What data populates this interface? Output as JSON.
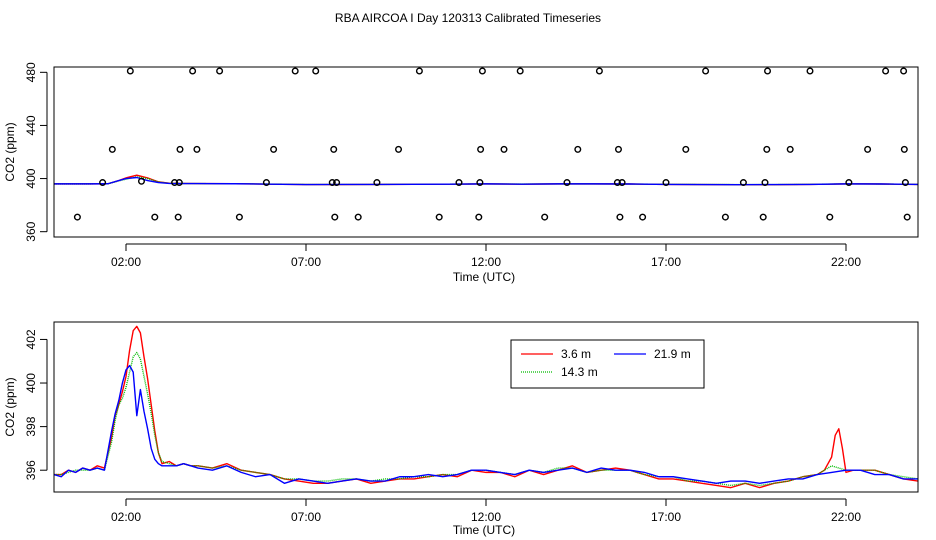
{
  "title": "RBA AIRCOA I  Day 120313  Calibrated Timeseries",
  "colors": {
    "s1": "#ff0000",
    "s2": "#00bb00",
    "s3": "#0000ff"
  },
  "chart_data": [
    {
      "type": "scatter",
      "xlabel": "Time (UTC)",
      "ylabel": "CO2 (ppm)",
      "xlim": [
        0.0,
        24.0
      ],
      "ylim": [
        356,
        484
      ],
      "xticks": [
        2,
        7,
        12,
        17,
        22
      ],
      "xtick_labels": [
        "02:00",
        "07:00",
        "12:00",
        "17:00",
        "22:00"
      ],
      "yticks": [
        360,
        400,
        440,
        480
      ],
      "ytick_labels": [
        "360",
        "400",
        "440",
        "480"
      ],
      "point_series": {
        "x": [
          0.65,
          1.35,
          1.62,
          2.12,
          2.43,
          2.8,
          3.35,
          3.45,
          3.48,
          3.5,
          3.85,
          3.97,
          4.6,
          5.15,
          5.9,
          6.1,
          6.7,
          7.27,
          7.73,
          7.77,
          7.8,
          7.85,
          8.45,
          8.97,
          9.57,
          10.15,
          10.7,
          11.25,
          11.8,
          11.83,
          11.85,
          11.9,
          12.5,
          12.95,
          13.63,
          14.25,
          14.55,
          15.15,
          15.65,
          15.68,
          15.72,
          15.78,
          16.35,
          17.0,
          17.55,
          18.1,
          18.65,
          19.15,
          19.7,
          19.75,
          19.8,
          19.82,
          20.45,
          21.0,
          21.55,
          22.08,
          22.6,
          23.1,
          23.6,
          23.62,
          23.65,
          23.7
        ],
        "y": [
          371,
          397,
          422,
          481,
          398,
          371,
          397,
          371,
          397,
          422,
          481,
          422,
          481,
          371,
          397,
          422,
          481,
          481,
          397,
          422,
          371,
          397,
          371,
          397,
          422,
          481,
          371,
          397,
          371,
          397,
          422,
          481,
          422,
          481,
          371,
          397,
          422,
          481,
          397,
          422,
          371,
          397,
          371,
          397,
          422,
          481,
          371,
          397,
          371,
          397,
          422,
          481,
          422,
          481,
          371,
          397,
          422,
          481,
          481,
          422,
          397,
          371
        ]
      },
      "series": [
        {
          "x": [
            0.0,
            0.5,
            1.0,
            1.5,
            1.8,
            2.0,
            2.3,
            2.6,
            2.9,
            3.2,
            3.5,
            4.0,
            5.0,
            6.0,
            7.0,
            8.0,
            9.0,
            10.0,
            11.0,
            12.0,
            13.0,
            14.0,
            15.0,
            16.0,
            17.0,
            18.0,
            19.0,
            20.0,
            21.0,
            21.5,
            22.0,
            22.5,
            23.0,
            23.5,
            24.0
          ],
          "y": [
            396,
            396,
            396,
            396.1,
            398.5,
            400.5,
            402.5,
            400.5,
            397.5,
            396.5,
            396.3,
            396.2,
            396.1,
            395.8,
            395.5,
            395.5,
            395.6,
            395.7,
            395.8,
            396.0,
            395.8,
            396.0,
            396.0,
            395.9,
            395.6,
            395.5,
            395.4,
            395.4,
            395.6,
            395.8,
            396.0,
            396.0,
            395.9,
            395.7,
            395.6
          ]
        },
        {
          "x": [
            0.0,
            0.5,
            1.0,
            1.5,
            1.8,
            2.0,
            2.3,
            2.6,
            2.9,
            3.2,
            3.5,
            4.0,
            5.0,
            6.0,
            7.0,
            8.0,
            9.0,
            10.0,
            11.0,
            12.0,
            13.0,
            14.0,
            15.0,
            16.0,
            17.0,
            18.0,
            19.0,
            20.0,
            21.0,
            22.0,
            23.0,
            24.0
          ],
          "y": [
            396,
            396,
            396,
            396.1,
            398.3,
            399.5,
            401.3,
            400,
            397.5,
            396.4,
            396.3,
            396.2,
            396.1,
            395.9,
            395.6,
            395.6,
            395.6,
            395.7,
            395.8,
            396.0,
            395.9,
            396.0,
            396.0,
            395.9,
            395.7,
            395.6,
            395.5,
            395.5,
            395.7,
            396.0,
            395.9,
            395.6
          ]
        },
        {
          "x": [
            0.0,
            0.5,
            1.0,
            1.5,
            1.8,
            2.0,
            2.3,
            2.6,
            2.9,
            3.2,
            3.5,
            4.0,
            5.0,
            6.0,
            7.0,
            8.0,
            9.0,
            10.0,
            11.0,
            12.0,
            13.0,
            14.0,
            15.0,
            16.0,
            17.0,
            18.0,
            19.0,
            20.0,
            21.0,
            22.0,
            23.0,
            24.0
          ],
          "y": [
            396,
            396,
            396,
            396.1,
            398.5,
            400,
            400.8,
            398.5,
            397,
            396.3,
            396.2,
            396.2,
            396.1,
            395.8,
            395.5,
            395.6,
            395.6,
            395.7,
            395.8,
            396.0,
            395.8,
            396.0,
            396.0,
            395.9,
            395.6,
            395.5,
            395.4,
            395.5,
            395.6,
            396.0,
            395.9,
            395.6
          ]
        }
      ]
    },
    {
      "type": "line",
      "xlabel": "Time (UTC)",
      "ylabel": "CO2 (ppm)",
      "xlim": [
        0.0,
        24.0
      ],
      "ylim": [
        395.0,
        402.8
      ],
      "xticks": [
        2,
        7,
        12,
        17,
        22
      ],
      "xtick_labels": [
        "02:00",
        "07:00",
        "12:00",
        "17:00",
        "22:00"
      ],
      "yticks": [
        396,
        398,
        400,
        402
      ],
      "ytick_labels": [
        "396",
        "398",
        "400",
        "402"
      ],
      "legend_position": "top-right",
      "series": [
        {
          "name": "3.6 m",
          "x": [
            0.0,
            0.2,
            0.4,
            0.6,
            0.8,
            1.0,
            1.2,
            1.4,
            1.6,
            1.7,
            1.8,
            1.9,
            2.0,
            2.1,
            2.2,
            2.3,
            2.4,
            2.5,
            2.6,
            2.7,
            2.8,
            2.9,
            3.0,
            3.2,
            3.4,
            3.6,
            3.8,
            4.0,
            4.4,
            4.8,
            5.2,
            5.6,
            6.0,
            6.4,
            6.8,
            7.2,
            7.6,
            8.0,
            8.4,
            8.8,
            9.2,
            9.6,
            10.0,
            10.4,
            10.8,
            11.2,
            11.6,
            12.0,
            12.4,
            12.8,
            13.2,
            13.6,
            14.0,
            14.4,
            14.8,
            15.2,
            15.6,
            16.0,
            16.4,
            16.8,
            17.2,
            17.6,
            18.0,
            18.4,
            18.8,
            19.2,
            19.6,
            20.0,
            20.4,
            20.8,
            21.2,
            21.4,
            21.6,
            21.7,
            21.8,
            21.9,
            22.0,
            22.2,
            22.4,
            22.8,
            23.2,
            23.6,
            24.0
          ],
          "y": [
            395.8,
            395.8,
            396.0,
            395.9,
            396.1,
            396.0,
            396.2,
            396.1,
            397.5,
            398.5,
            399.0,
            399.6,
            400.3,
            401.5,
            402.4,
            402.6,
            402.3,
            401.2,
            400.2,
            399.0,
            397.8,
            396.8,
            396.3,
            396.4,
            396.2,
            396.3,
            396.2,
            396.2,
            396.1,
            396.3,
            396.0,
            395.9,
            395.8,
            395.6,
            395.5,
            395.4,
            395.4,
            395.5,
            395.6,
            395.4,
            395.5,
            395.6,
            395.6,
            395.7,
            395.8,
            395.7,
            396.0,
            395.9,
            395.9,
            395.7,
            396.0,
            395.8,
            396.0,
            396.2,
            395.9,
            396.0,
            396.1,
            396.0,
            395.8,
            395.6,
            395.6,
            395.5,
            395.4,
            395.3,
            395.2,
            395.4,
            395.2,
            395.4,
            395.5,
            395.7,
            395.8,
            396.0,
            396.6,
            397.6,
            397.9,
            397.0,
            395.9,
            396.0,
            396.0,
            396.0,
            395.8,
            395.6,
            395.5
          ]
        },
        {
          "name": "14.3 m",
          "x": [
            0.0,
            0.2,
            0.4,
            0.6,
            0.8,
            1.0,
            1.2,
            1.4,
            1.6,
            1.7,
            1.8,
            1.9,
            2.0,
            2.1,
            2.2,
            2.3,
            2.4,
            2.5,
            2.6,
            2.7,
            2.8,
            2.9,
            3.0,
            3.2,
            3.4,
            3.6,
            3.8,
            4.0,
            4.4,
            4.8,
            5.2,
            5.6,
            6.0,
            6.4,
            6.8,
            7.2,
            7.6,
            8.0,
            8.4,
            8.8,
            9.2,
            9.6,
            10.0,
            10.4,
            10.8,
            11.2,
            11.6,
            12.0,
            12.4,
            12.8,
            13.2,
            13.6,
            14.0,
            14.4,
            14.8,
            15.2,
            15.6,
            16.0,
            16.4,
            16.8,
            17.2,
            17.6,
            18.0,
            18.4,
            18.8,
            19.2,
            19.6,
            20.0,
            20.4,
            20.8,
            21.2,
            21.4,
            21.6,
            21.8,
            22.0,
            22.2,
            22.4,
            22.8,
            23.2,
            23.6,
            24.0
          ],
          "y": [
            395.8,
            395.8,
            395.9,
            396.0,
            396.0,
            396.0,
            396.1,
            396.0,
            397.3,
            398.3,
            399.0,
            399.3,
            399.8,
            400.5,
            401.2,
            401.4,
            401.1,
            400.3,
            399.5,
            398.6,
            397.6,
            396.8,
            396.4,
            396.3,
            396.2,
            396.3,
            396.2,
            396.2,
            396.1,
            396.2,
            396.0,
            395.9,
            395.8,
            395.6,
            395.6,
            395.5,
            395.5,
            395.6,
            395.6,
            395.5,
            395.6,
            395.6,
            395.7,
            395.7,
            395.8,
            395.8,
            396.0,
            396.0,
            395.9,
            395.8,
            396.0,
            395.9,
            396.1,
            396.1,
            395.9,
            396.0,
            396.0,
            396.0,
            395.8,
            395.7,
            395.7,
            395.5,
            395.5,
            395.4,
            395.3,
            395.4,
            395.3,
            395.4,
            395.5,
            395.7,
            395.8,
            396.0,
            396.2,
            396.1,
            396.0,
            396.0,
            396.0,
            396.0,
            395.8,
            395.7,
            395.6
          ]
        },
        {
          "name": "21.9 m",
          "x": [
            0.0,
            0.2,
            0.4,
            0.6,
            0.8,
            1.0,
            1.2,
            1.4,
            1.6,
            1.7,
            1.8,
            1.9,
            2.0,
            2.1,
            2.2,
            2.3,
            2.4,
            2.5,
            2.6,
            2.7,
            2.8,
            2.9,
            3.0,
            3.2,
            3.4,
            3.6,
            3.8,
            4.0,
            4.4,
            4.8,
            5.2,
            5.6,
            6.0,
            6.4,
            6.8,
            7.2,
            7.6,
            8.0,
            8.4,
            8.8,
            9.2,
            9.6,
            10.0,
            10.4,
            10.8,
            11.2,
            11.6,
            12.0,
            12.4,
            12.8,
            13.2,
            13.6,
            14.0,
            14.4,
            14.8,
            15.2,
            15.6,
            16.0,
            16.4,
            16.8,
            17.2,
            17.6,
            18.0,
            18.4,
            18.8,
            19.2,
            19.6,
            20.0,
            20.4,
            20.8,
            21.2,
            21.6,
            22.0,
            22.4,
            22.8,
            23.2,
            23.6,
            24.0
          ],
          "y": [
            395.8,
            395.7,
            396.0,
            395.9,
            396.1,
            396.0,
            396.1,
            396.0,
            397.8,
            398.6,
            399.2,
            400.0,
            400.6,
            400.8,
            400.5,
            398.5,
            399.7,
            398.7,
            397.9,
            397.0,
            396.5,
            396.3,
            396.2,
            396.2,
            396.2,
            396.3,
            396.2,
            396.1,
            396.0,
            396.2,
            395.9,
            395.7,
            395.8,
            395.4,
            395.6,
            395.5,
            395.4,
            395.5,
            395.6,
            395.5,
            395.5,
            395.7,
            395.7,
            395.8,
            395.7,
            395.8,
            396.0,
            396.0,
            395.9,
            395.8,
            396.0,
            395.9,
            396.0,
            396.1,
            395.9,
            396.1,
            396.0,
            396.0,
            395.9,
            395.7,
            395.7,
            395.6,
            395.5,
            395.4,
            395.5,
            395.5,
            395.4,
            395.5,
            395.6,
            395.6,
            395.8,
            395.9,
            396.0,
            396.0,
            395.8,
            395.8,
            395.6,
            395.6
          ]
        }
      ]
    }
  ]
}
